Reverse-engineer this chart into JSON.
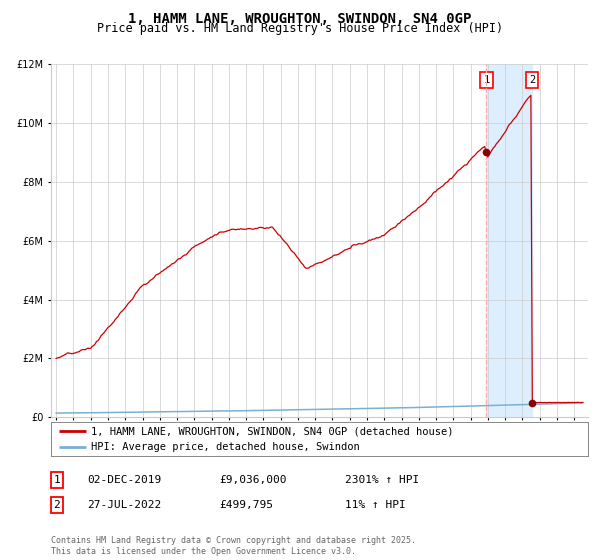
{
  "title": "1, HAMM LANE, WROUGHTON, SWINDON, SN4 0GP",
  "subtitle": "Price paid vs. HM Land Registry's House Price Index (HPI)",
  "ylim": [
    0,
    12000000
  ],
  "xlim_start": 1994.7,
  "xlim_end": 2025.8,
  "hpi_line_color": "#7ab0d4",
  "price_line_color": "#cc0000",
  "shade_color": "#ddeeff",
  "point1_date_num": 2019.92,
  "point1_price": 9036000,
  "point2_date_num": 2022.57,
  "point2_price": 499795,
  "marker_color": "#880000",
  "dashed_line_color": "#ffaaaa",
  "legend_label1": "1, HAMM LANE, WROUGHTON, SWINDON, SN4 0GP (detached house)",
  "legend_label2": "HPI: Average price, detached house, Swindon",
  "annotation1_date": "02-DEC-2019",
  "annotation1_price": "£9,036,000",
  "annotation1_hpi": "2301% ↑ HPI",
  "annotation2_date": "27-JUL-2022",
  "annotation2_price": "£499,795",
  "annotation2_hpi": "11% ↑ HPI",
  "footer": "Contains HM Land Registry data © Crown copyright and database right 2025.\nThis data is licensed under the Open Government Licence v3.0.",
  "background_color": "#ffffff",
  "grid_color": "#cccccc",
  "title_fontsize": 10,
  "subtitle_fontsize": 8.5,
  "tick_fontsize": 7,
  "legend_fontsize": 7.5,
  "annotation_fontsize": 8,
  "footer_fontsize": 6
}
